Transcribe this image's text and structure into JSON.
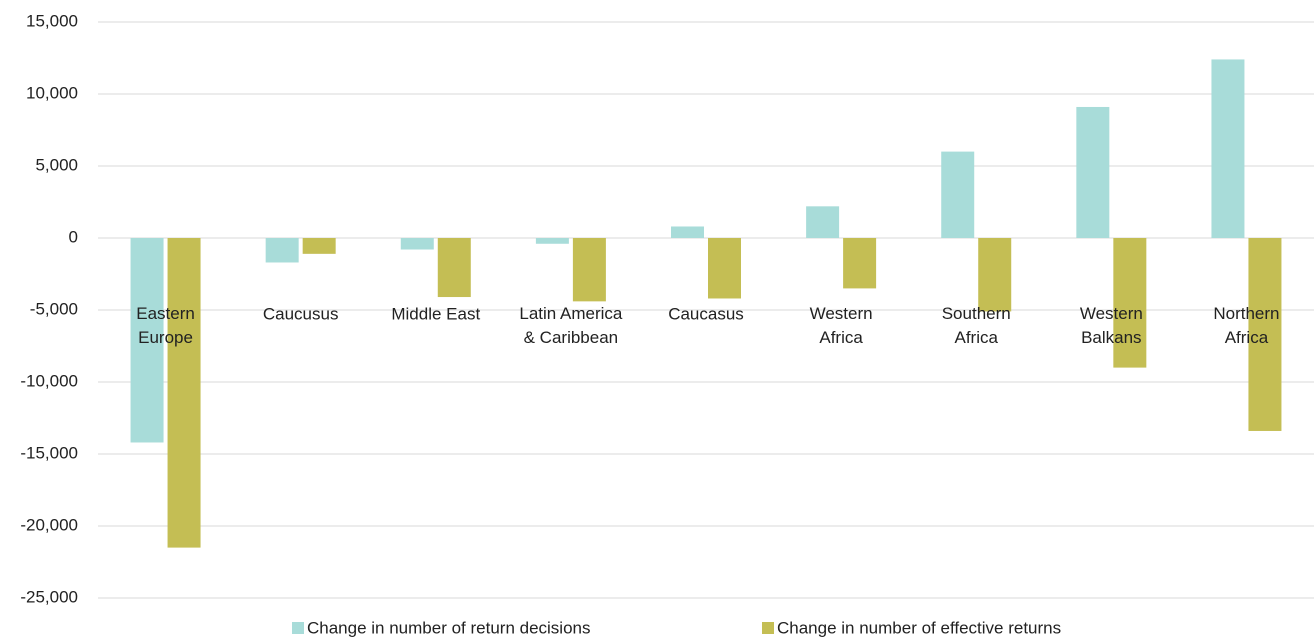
{
  "chart_data": {
    "type": "bar",
    "categories": [
      "Eastern\nEurope",
      "Caucusus",
      "Middle East",
      "Latin America\n& Caribbean",
      "Caucasus",
      "Western\nAfrica",
      "Southern\nAfrica",
      "Western\nBalkans",
      "Northern\nAfrica"
    ],
    "series": [
      {
        "name": "Change in number of return decisions",
        "color": "#a8dcd9",
        "values": [
          -14200,
          -1700,
          -800,
          -400,
          800,
          2200,
          6000,
          9100,
          12400
        ]
      },
      {
        "name": "Change in number of effective returns",
        "color": "#c4be54",
        "values": [
          -21500,
          -1100,
          -4100,
          -4400,
          -4200,
          -3500,
          -5100,
          -9000,
          -13400
        ]
      }
    ],
    "ylim": [
      -25000,
      15000
    ],
    "yticks": [
      {
        "value": -25000,
        "label": "-25,000"
      },
      {
        "value": -20000,
        "label": "-20,000"
      },
      {
        "value": -15000,
        "label": "-15,000"
      },
      {
        "value": -10000,
        "label": "-10,000"
      },
      {
        "value": -5000,
        "label": "-5,000"
      },
      0,
      {
        "value": 5000,
        "label": "5,000"
      },
      {
        "value": 10000,
        "label": "10,000"
      },
      {
        "value": 15000,
        "label": "15,000"
      }
    ],
    "grid": true,
    "legend": "bottom"
  }
}
